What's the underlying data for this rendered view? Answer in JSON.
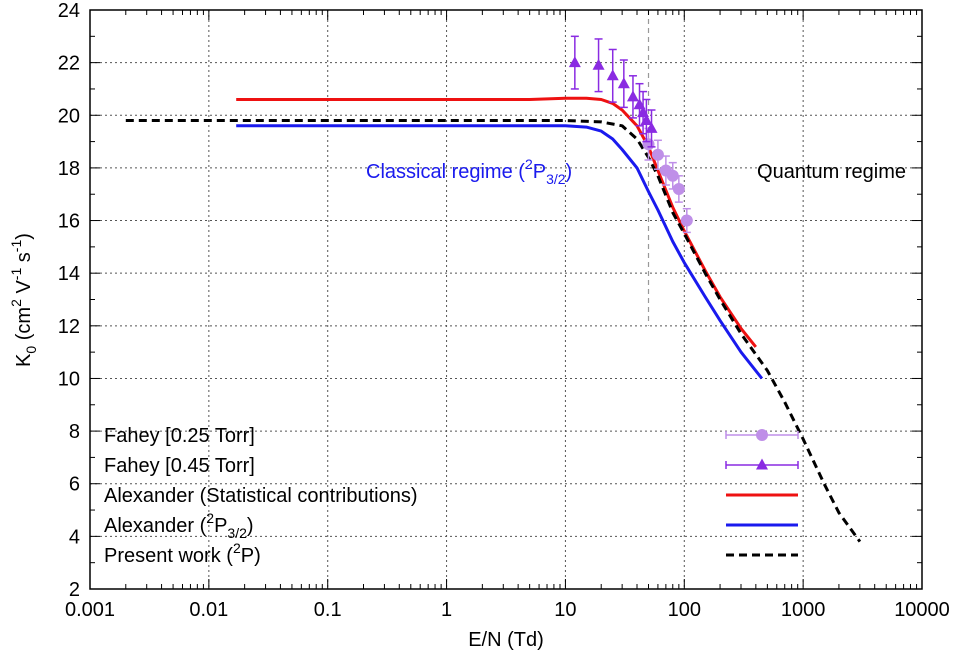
{
  "chart_data": {
    "type": "line",
    "title": "",
    "xlabel": "E/N (Td)",
    "ylabel_parts": [
      "K",
      "0",
      " (cm",
      "2",
      " V",
      "-1",
      " s",
      "-1",
      ")"
    ],
    "xscale": "log",
    "xlim": [
      0.001,
      10000
    ],
    "ylim": [
      2,
      24
    ],
    "x_ticks": [
      0.001,
      0.01,
      0.1,
      1,
      10,
      100,
      1000,
      10000
    ],
    "x_tick_labels": [
      "0.001",
      "0.01",
      "0.1",
      "1",
      "10",
      "100",
      "1000",
      "10000"
    ],
    "y_ticks": [
      2,
      4,
      6,
      8,
      10,
      12,
      14,
      16,
      18,
      20,
      22,
      24
    ],
    "y_tick_labels": [
      "2",
      "4",
      "6",
      "8",
      "10",
      "12",
      "14",
      "16",
      "18",
      "20",
      "22",
      "24"
    ],
    "grid": true,
    "legend_position": "bottom-left",
    "vertical_marker_x": 50,
    "annotations": {
      "classical": {
        "main": "Classical regime (",
        "sup": "2",
        "base": "P",
        "sub": "3/2",
        "tail": ")",
        "color": "#1a1aee"
      },
      "quantum": {
        "text": "Quantum regime",
        "color": "#000000"
      }
    },
    "series": [
      {
        "name": "Fahey [0.25 Torr]",
        "kind": "points",
        "marker": "circle",
        "color": "#bf8fe8",
        "x": [
          50,
          60,
          70,
          80,
          90,
          105
        ],
        "y": [
          18.9,
          18.5,
          17.9,
          17.7,
          17.2,
          16.0
        ],
        "y_err": [
          0.6,
          0.55,
          0.55,
          0.5,
          0.5,
          0.45
        ]
      },
      {
        "name": "Fahey [0.45 Torr]",
        "kind": "points",
        "marker": "triangle",
        "color": "#8a2be2",
        "x": [
          12,
          19,
          25,
          31,
          37,
          42,
          45,
          48,
          53
        ],
        "y": [
          22.0,
          21.9,
          21.5,
          21.2,
          20.7,
          20.4,
          20.1,
          19.8,
          19.5
        ],
        "y_err": [
          1.0,
          1.0,
          1.0,
          0.9,
          0.8,
          0.8,
          0.8,
          0.8,
          0.7
        ]
      },
      {
        "name": "Alexander (Statistical contributions)",
        "kind": "line",
        "color": "#ee1111",
        "x": [
          0.017,
          0.1,
          1,
          5,
          10,
          15,
          20,
          25,
          30,
          40,
          50,
          60,
          80,
          100,
          150,
          200,
          300,
          400
        ],
        "y": [
          20.6,
          20.6,
          20.6,
          20.6,
          20.65,
          20.65,
          20.6,
          20.45,
          20.2,
          19.6,
          18.8,
          17.9,
          16.5,
          15.6,
          14.1,
          13.1,
          11.9,
          11.2
        ]
      },
      {
        "name": "Alexander (2P3/2)",
        "name_parts": {
          "main": "Alexander (",
          "sup": "2",
          "base": "P",
          "sub": "3/2",
          "tail": ")"
        },
        "kind": "line",
        "color": "#1a1aee",
        "x": [
          0.017,
          0.1,
          1,
          5,
          10,
          15,
          20,
          25,
          30,
          40,
          50,
          60,
          80,
          100,
          150,
          200,
          300,
          450
        ],
        "y": [
          19.6,
          19.6,
          19.6,
          19.6,
          19.6,
          19.55,
          19.4,
          19.1,
          18.7,
          18.0,
          17.1,
          16.4,
          15.2,
          14.4,
          13.1,
          12.2,
          11.0,
          10.0
        ]
      },
      {
        "name": "Present work (2P)",
        "name_parts": {
          "main": "Present work (",
          "sup": "2",
          "base": "P",
          "sub": "",
          "tail": ")"
        },
        "kind": "dashed-line",
        "color": "#000000",
        "x": [
          0.002,
          0.01,
          0.1,
          1,
          10,
          20,
          30,
          40,
          50,
          60,
          80,
          100,
          150,
          200,
          300,
          500,
          700,
          1000,
          1500,
          2000,
          3000
        ],
        "y": [
          19.8,
          19.8,
          19.8,
          19.8,
          19.8,
          19.75,
          19.6,
          19.1,
          18.4,
          17.7,
          16.3,
          15.5,
          14.0,
          13.0,
          11.7,
          10.3,
          9.1,
          7.7,
          6.0,
          4.9,
          3.8
        ]
      }
    ]
  }
}
